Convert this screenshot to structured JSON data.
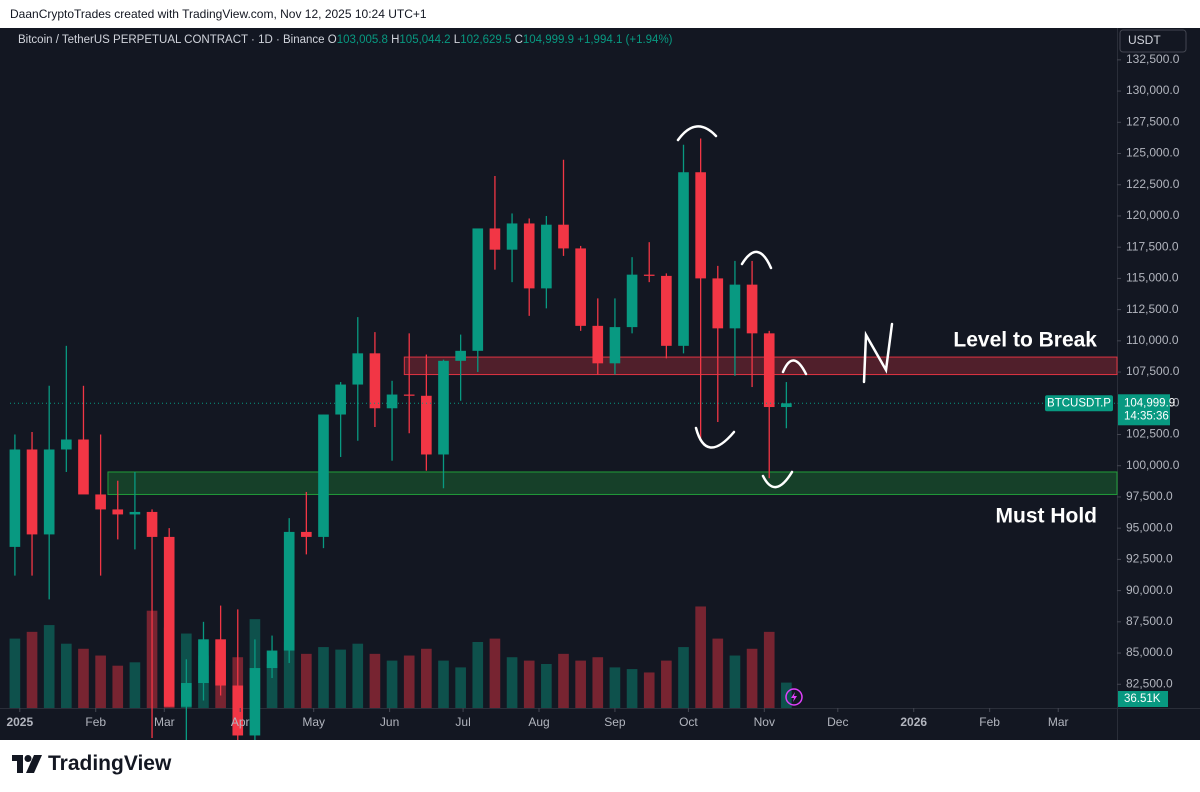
{
  "chart_data": {
    "type": "candlestick",
    "attribution": "DaanCryptoTrades created with TradingView.com, Nov 12, 2025 10:24 UTC+1",
    "title": "Bitcoin / TetherUS PERPETUAL CONTRACT · 1D · Binance",
    "ohlc_header": [
      "O",
      "103,005.8",
      "H",
      "105,044.2",
      "L",
      "102,629.5",
      "C",
      "104,999.9",
      "+1,994.1 (+1.94%)"
    ],
    "currency": "USDT",
    "symbol": "BTCUSDT.P",
    "last_price": {
      "value": 104999.9,
      "label": "104,999.9"
    },
    "countdown": "14:35:36",
    "volume_label": "36.51K",
    "logo": "TradingView",
    "up_color": "#089981",
    "down_color": "#f23645",
    "grid": false,
    "xlim": [
      -4,
      448
    ],
    "xticks": [
      {
        "value": 0,
        "label": "2025"
      },
      {
        "value": 31,
        "label": "Feb"
      },
      {
        "value": 59,
        "label": "Mar"
      },
      {
        "value": 90,
        "label": "Apr"
      },
      {
        "value": 120,
        "label": "May"
      },
      {
        "value": 151,
        "label": "Jun"
      },
      {
        "value": 181,
        "label": "Jul"
      },
      {
        "value": 212,
        "label": "Aug"
      },
      {
        "value": 243,
        "label": "Sep"
      },
      {
        "value": 273,
        "label": "Oct"
      },
      {
        "value": 304,
        "label": "Nov"
      },
      {
        "value": 334,
        "label": "Dec"
      },
      {
        "value": 365,
        "label": "2026"
      },
      {
        "value": 396,
        "label": "Feb"
      },
      {
        "value": 424,
        "label": "Mar"
      }
    ],
    "ylim": [
      80600,
      135050
    ],
    "yticks": [
      {
        "value": 82500,
        "label": "82,500.0"
      },
      {
        "value": 85000,
        "label": "85,000.0"
      },
      {
        "value": 87500,
        "label": "87,500.0"
      },
      {
        "value": 90000,
        "label": "90,000.0"
      },
      {
        "value": 92500,
        "label": "92,500.0"
      },
      {
        "value": 95000,
        "label": "95,000.0"
      },
      {
        "value": 97500,
        "label": "97,500.0"
      },
      {
        "value": 100000,
        "label": "100,000.0"
      },
      {
        "value": 102500,
        "label": "102,500.0"
      },
      {
        "value": 105000,
        "label": "105,000.0"
      },
      {
        "value": 107500,
        "label": "107,500.0"
      },
      {
        "value": 110000,
        "label": "110,000.0"
      },
      {
        "value": 112500,
        "label": "112,500.0"
      },
      {
        "value": 115000,
        "label": "115,000.0"
      },
      {
        "value": 117500,
        "label": "117,500.0"
      },
      {
        "value": 120000,
        "label": "120,000.0"
      },
      {
        "value": 122500,
        "label": "122,500.0"
      },
      {
        "value": 125000,
        "label": "125,000.0"
      },
      {
        "value": 127500,
        "label": "127,500.0"
      },
      {
        "value": 130000,
        "label": "130,000.0"
      },
      {
        "value": 132500,
        "label": "132,500.0"
      }
    ],
    "vlim": [
      0,
      1300
    ],
    "x": [
      -2,
      5,
      12,
      19,
      26,
      33,
      40,
      47,
      54,
      61,
      68,
      75,
      82,
      89,
      96,
      103,
      110,
      117,
      124,
      131,
      138,
      145,
      152,
      159,
      166,
      173,
      180,
      187,
      194,
      201,
      208,
      215,
      222,
      229,
      236,
      243,
      250,
      257,
      264,
      271,
      278,
      285,
      292,
      299,
      306,
      313
    ],
    "open": [
      93500,
      101300,
      94500,
      101300,
      102100,
      97700,
      96500,
      96100,
      96300,
      94300,
      80700,
      82600,
      86100,
      82400,
      78400,
      83800,
      85200,
      94700,
      94300,
      104100,
      106500,
      109000,
      104600,
      105700,
      105600,
      100900,
      108400,
      109200,
      119000,
      117300,
      119400,
      114200,
      119300,
      117400,
      111200,
      108200,
      111100,
      115300,
      115200,
      109600,
      123500,
      115000,
      111000,
      114500,
      110600,
      104700
    ],
    "high": [
      102500,
      102700,
      106400,
      109600,
      106400,
      102500,
      98800,
      99500,
      96500,
      95000,
      84500,
      87500,
      88800,
      88500,
      86100,
      86400,
      95800,
      97900,
      104100,
      106700,
      111900,
      110700,
      106800,
      110600,
      108900,
      108500,
      110500,
      119000,
      123200,
      120200,
      119800,
      120000,
      124500,
      117600,
      113400,
      113400,
      116700,
      117900,
      115400,
      125700,
      126200,
      116000,
      116400,
      116400,
      110800,
      106700
    ],
    "low": [
      91200,
      91200,
      89300,
      99500,
      97800,
      91200,
      94100,
      93300,
      78200,
      80700,
      76600,
      81200,
      81600,
      77100,
      74500,
      83000,
      84200,
      92900,
      93400,
      100700,
      102000,
      103100,
      100400,
      102600,
      99600,
      98200,
      105200,
      107500,
      115700,
      114700,
      112000,
      112600,
      116800,
      110800,
      107300,
      107300,
      110600,
      114700,
      108600,
      109000,
      102000,
      103500,
      107200,
      106300,
      99000,
      103000
    ],
    "close": [
      101300,
      94500,
      101300,
      102100,
      97700,
      96500,
      96100,
      96300,
      94300,
      80700,
      82600,
      86100,
      82400,
      78400,
      83800,
      85200,
      94700,
      94300,
      104100,
      106500,
      109000,
      104600,
      105700,
      105600,
      100900,
      108400,
      109200,
      119000,
      117300,
      119400,
      114200,
      119300,
      117400,
      111200,
      108200,
      111100,
      115300,
      115200,
      109600,
      123500,
      115000,
      111000,
      114500,
      110600,
      104700,
      104999.9
    ],
    "volume": [
      820,
      900,
      980,
      760,
      700,
      620,
      500,
      540,
      1150,
      950,
      880,
      620,
      560,
      600,
      1050,
      520,
      780,
      640,
      720,
      690,
      760,
      640,
      560,
      620,
      700,
      560,
      480,
      780,
      820,
      600,
      560,
      520,
      640,
      560,
      600,
      480,
      460,
      420,
      560,
      720,
      1200,
      820,
      620,
      700,
      900,
      300
    ],
    "zones": [
      {
        "low": 107300,
        "high": 108700,
        "start": 157,
        "color": "#f23645"
      },
      {
        "low": 97700,
        "high": 99500,
        "start": 36,
        "color": "#22ab3c"
      }
    ],
    "annotations": [
      {
        "text": "Level to Break",
        "price": 110000
      },
      {
        "text": "Must Hold",
        "price": 95900
      }
    ]
  }
}
